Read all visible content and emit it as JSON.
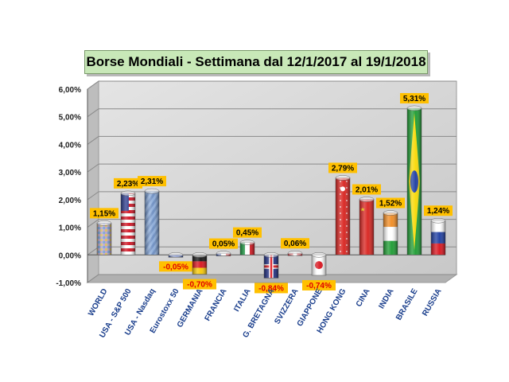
{
  "title": "Borse Mondiali -  Settimana dal 12/1/2017 al 19/1/2018",
  "colors": {
    "label_bg": "#ffc000",
    "positive_text": "#000000",
    "negative_text": "#e00000",
    "category_text": "#1a3e8c",
    "wall": "#d6d6d6"
  },
  "chart_data": {
    "type": "bar",
    "title": "Borse Mondiali -  Settimana dal 12/1/2017 al 19/1/2018",
    "xlabel": "",
    "ylabel": "",
    "ylim": [
      -1,
      6
    ],
    "yticks": [
      "-1,00%",
      "0,00%",
      "1,00%",
      "2,00%",
      "3,00%",
      "4,00%",
      "5,00%",
      "6,00%"
    ],
    "grid": true,
    "legend": "none",
    "categories": [
      "WORLD",
      "USA - S&P 500",
      "USA - Nasdaq",
      "Eurostoxx 50",
      "GERMANIA",
      "FRANCIA",
      "ITALIA",
      "G. BRETAGNA",
      "SVIZZERA",
      "GIAPPONE",
      "HONG KONG",
      "CINA",
      "INDIA",
      "BRASILE",
      "RUSSIA"
    ],
    "values": [
      1.15,
      2.23,
      2.31,
      -0.05,
      -0.7,
      0.05,
      0.45,
      -0.84,
      0.06,
      -0.74,
      2.79,
      2.01,
      1.52,
      5.31,
      1.24
    ],
    "value_labels": [
      "1,15%",
      "2,23%",
      "2,31%",
      "-0,05%",
      "-0,70%",
      "0,05%",
      "0,45%",
      "-0,84%",
      "0,06%",
      "-0,74%",
      "2,79%",
      "2,01%",
      "1,52%",
      "5,31%",
      "1,24%"
    ],
    "bar_styles": [
      "world",
      "usa",
      "nasdaq",
      "eu",
      "germany",
      "france",
      "italy",
      "uk",
      "swiss",
      "japan",
      "hongkong",
      "china",
      "india",
      "brazil",
      "russia"
    ]
  }
}
